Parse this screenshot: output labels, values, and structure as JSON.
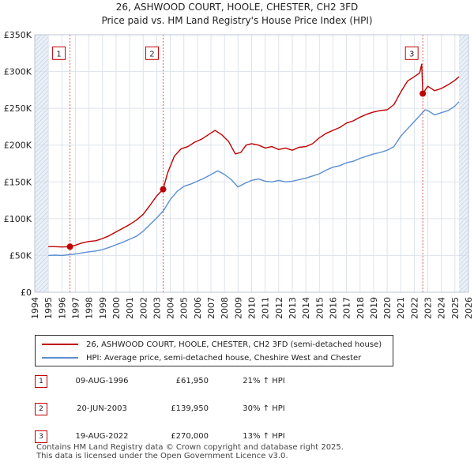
{
  "title_line1": "26, ASHWOOD COURT, HOOLE, CHESTER, CH2 3FD",
  "title_line2": "Price paid vs. HM Land Registry's House Price Index (HPI)",
  "chart_data": {
    "type": "line",
    "x_range": [
      1994,
      2026
    ],
    "ylim": [
      0,
      350000
    ],
    "y_ticks": [
      0,
      50000,
      100000,
      150000,
      200000,
      250000,
      300000,
      350000
    ],
    "y_tick_labels": [
      "£0",
      "£50K",
      "£100K",
      "£150K",
      "£200K",
      "£250K",
      "£300K",
      "£350K"
    ],
    "x_ticks": [
      1994,
      1995,
      1996,
      1997,
      1998,
      1999,
      2000,
      2001,
      2002,
      2003,
      2004,
      2005,
      2006,
      2007,
      2008,
      2009,
      2010,
      2011,
      2012,
      2013,
      2014,
      2015,
      2016,
      2017,
      2018,
      2019,
      2020,
      2021,
      2022,
      2023,
      2024,
      2025,
      2026
    ],
    "data_start": 1995.0,
    "data_end": 2025.3,
    "series": [
      {
        "name": "26, ASHWOOD COURT, HOOLE, CHESTER, CH2 3FD (semi-detached house)",
        "color": "#c00000",
        "x": [
          1995.0,
          1995.5,
          1996.0,
          1996.6,
          1997.0,
          1997.5,
          1998.0,
          1998.5,
          1999.0,
          1999.5,
          2000.0,
          2000.5,
          2001.0,
          2001.5,
          2002.0,
          2002.5,
          2003.0,
          2003.47,
          2003.8,
          2004.3,
          2004.8,
          2005.3,
          2005.8,
          2006.3,
          2006.8,
          2007.3,
          2007.8,
          2008.3,
          2008.8,
          2009.2,
          2009.6,
          2010.0,
          2010.5,
          2011.0,
          2011.5,
          2012.0,
          2012.5,
          2013.0,
          2013.5,
          2014.0,
          2014.5,
          2015.0,
          2015.5,
          2016.0,
          2016.5,
          2017.0,
          2017.5,
          2018.0,
          2018.5,
          2019.0,
          2019.5,
          2020.0,
          2020.5,
          2021.0,
          2021.5,
          2022.0,
          2022.4,
          2022.55,
          2022.63,
          2023.0,
          2023.5,
          2024.0,
          2024.5,
          2025.0,
          2025.3
        ],
        "values": [
          62000,
          62000,
          61500,
          61950,
          64000,
          67000,
          69000,
          70000,
          73000,
          77000,
          82000,
          87000,
          92000,
          98000,
          106000,
          118000,
          131000,
          139950,
          162000,
          185000,
          195000,
          198000,
          204000,
          208000,
          214000,
          220000,
          214000,
          205000,
          188000,
          190000,
          200000,
          202000,
          200000,
          196000,
          198000,
          194000,
          196000,
          193000,
          197000,
          198000,
          202000,
          210000,
          216000,
          220000,
          224000,
          230000,
          233000,
          238000,
          242000,
          245000,
          247000,
          248000,
          255000,
          272000,
          287000,
          293000,
          298000,
          310000,
          270000,
          280000,
          274000,
          277000,
          282000,
          288000,
          293000
        ]
      },
      {
        "name": "HPI: Average price, semi-detached house, Cheshire West and Chester",
        "color": "#5b8fd0",
        "x": [
          1995.0,
          1995.5,
          1996.0,
          1996.5,
          1997.0,
          1997.5,
          1998.0,
          1998.5,
          1999.0,
          1999.5,
          2000.0,
          2000.5,
          2001.0,
          2001.5,
          2002.0,
          2002.5,
          2003.0,
          2003.5,
          2004.0,
          2004.5,
          2005.0,
          2005.5,
          2006.0,
          2006.5,
          2007.0,
          2007.5,
          2008.0,
          2008.5,
          2009.0,
          2009.5,
          2010.0,
          2010.5,
          2011.0,
          2011.5,
          2012.0,
          2012.5,
          2013.0,
          2013.5,
          2014.0,
          2014.5,
          2015.0,
          2015.5,
          2016.0,
          2016.5,
          2017.0,
          2017.5,
          2018.0,
          2018.5,
          2019.0,
          2019.5,
          2020.0,
          2020.5,
          2021.0,
          2021.5,
          2022.0,
          2022.5,
          2022.8,
          2023.0,
          2023.5,
          2024.0,
          2024.5,
          2025.0,
          2025.3
        ],
        "values": [
          50000,
          50500,
          50000,
          51000,
          52000,
          53500,
          55000,
          56000,
          58000,
          61000,
          64500,
          68000,
          72000,
          76000,
          83000,
          92000,
          101000,
          111000,
          126000,
          137000,
          144000,
          147000,
          151000,
          155000,
          160000,
          165000,
          160000,
          153000,
          143000,
          148000,
          152000,
          154000,
          151000,
          150000,
          152000,
          150000,
          151000,
          153000,
          155000,
          158000,
          161000,
          166000,
          170000,
          172000,
          176000,
          178000,
          182000,
          185000,
          188000,
          190000,
          193000,
          198000,
          212000,
          222000,
          232000,
          242000,
          248000,
          247000,
          241000,
          244000,
          247000,
          253000,
          259000
        ]
      }
    ],
    "sales": [
      {
        "num": "1",
        "date": "09-AUG-1996",
        "price": "£61,950",
        "hpi": "21% ↑ HPI",
        "x": 1996.6,
        "value": 61950
      },
      {
        "num": "2",
        "date": "20-JUN-2003",
        "price": "£139,950",
        "hpi": "30% ↑ HPI",
        "x": 2003.47,
        "value": 139950
      },
      {
        "num": "3",
        "date": "19-AUG-2022",
        "price": "£270,000",
        "hpi": "13% ↑ HPI",
        "x": 2022.63,
        "value": 270000
      }
    ],
    "marker_value": 325000
  },
  "legend": {
    "property": "26, ASHWOOD COURT, HOOLE, CHESTER, CH2 3FD (semi-detached house)",
    "hpi": "HPI: Average price, semi-detached house, Cheshire West and Chester"
  },
  "footer": {
    "line1": "Contains HM Land Registry data © Crown copyright and database right 2025.",
    "line2": "This data is licensed under the Open Government Licence v3.0."
  }
}
